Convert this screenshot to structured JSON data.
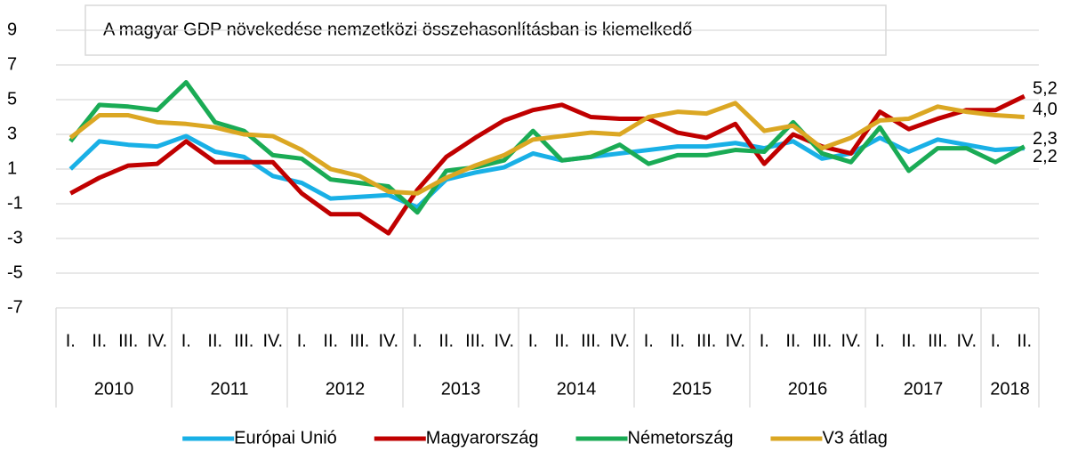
{
  "chart_data": {
    "type": "line",
    "title": "A magyar GDP növekedése nemzetközi összehasonlításban is kiemelkedő",
    "groups": [
      {
        "label": "2010",
        "categories": [
          "I.",
          "II.",
          "III.",
          "IV."
        ]
      },
      {
        "label": "2011",
        "categories": [
          "I.",
          "II.",
          "III.",
          "IV."
        ]
      },
      {
        "label": "2012",
        "categories": [
          "I.",
          "II.",
          "III.",
          "IV."
        ]
      },
      {
        "label": "2013",
        "categories": [
          "I.",
          "II.",
          "III.",
          "IV."
        ]
      },
      {
        "label": "2014",
        "categories": [
          "I.",
          "II.",
          "III.",
          "IV."
        ]
      },
      {
        "label": "2015",
        "categories": [
          "I.",
          "II.",
          "III.",
          "IV."
        ]
      },
      {
        "label": "2016",
        "categories": [
          "I.",
          "II.",
          "III.",
          "IV."
        ]
      },
      {
        "label": "2017",
        "categories": [
          "I.",
          "II.",
          "III.",
          "IV."
        ]
      },
      {
        "label": "2018",
        "categories": [
          "I.",
          "II."
        ]
      }
    ],
    "ylim": [
      -7,
      9
    ],
    "yticks": [
      -7,
      -5,
      -3,
      -1,
      1,
      3,
      5,
      7,
      9
    ],
    "grid": true,
    "legend": "bottom",
    "series": [
      {
        "name": "Európai Unió",
        "color": "#19b0e6",
        "end_label": "2,2",
        "values": [
          1.0,
          2.6,
          2.4,
          2.3,
          2.9,
          2.0,
          1.7,
          0.6,
          0.2,
          -0.7,
          -0.6,
          -0.5,
          -1.2,
          0.4,
          0.8,
          1.1,
          1.9,
          1.5,
          1.7,
          1.9,
          2.1,
          2.3,
          2.3,
          2.5,
          2.2,
          2.6,
          1.6,
          1.9,
          2.8,
          2.0,
          2.7,
          2.4,
          2.1,
          2.2
        ]
      },
      {
        "name": "Magyarország",
        "color": "#c00000",
        "end_label": "5,2",
        "values": [
          -0.4,
          0.5,
          1.2,
          1.3,
          2.6,
          1.4,
          1.4,
          1.4,
          -0.4,
          -1.6,
          -1.6,
          -2.7,
          -0.2,
          1.7,
          2.8,
          3.8,
          4.4,
          4.7,
          4.0,
          3.9,
          3.9,
          3.1,
          2.8,
          3.6,
          1.3,
          3.0,
          2.3,
          1.9,
          4.3,
          3.3,
          3.9,
          4.4,
          4.4,
          5.2
        ]
      },
      {
        "name": "Németország",
        "color": "#1aab55",
        "end_label": "2,3",
        "values": [
          2.6,
          4.7,
          4.6,
          4.4,
          6.0,
          3.7,
          3.2,
          1.8,
          1.6,
          0.4,
          0.2,
          0.0,
          -1.5,
          0.9,
          1.1,
          1.5,
          3.2,
          1.5,
          1.7,
          2.4,
          1.3,
          1.8,
          1.8,
          2.1,
          2.0,
          3.7,
          1.9,
          1.4,
          3.4,
          0.9,
          2.2,
          2.2,
          1.4,
          2.3
        ]
      },
      {
        "name": "V3 átlag",
        "color": "#dba723",
        "end_label": "4,0",
        "values": [
          2.8,
          4.1,
          4.1,
          3.7,
          3.6,
          3.4,
          3.0,
          2.9,
          2.1,
          1.0,
          0.6,
          -0.3,
          -0.4,
          0.5,
          1.2,
          1.8,
          2.7,
          2.9,
          3.1,
          3.0,
          4.0,
          4.3,
          4.2,
          4.8,
          3.2,
          3.5,
          2.2,
          2.8,
          3.8,
          3.9,
          4.6,
          4.3,
          4.1,
          4.0
        ]
      }
    ]
  }
}
